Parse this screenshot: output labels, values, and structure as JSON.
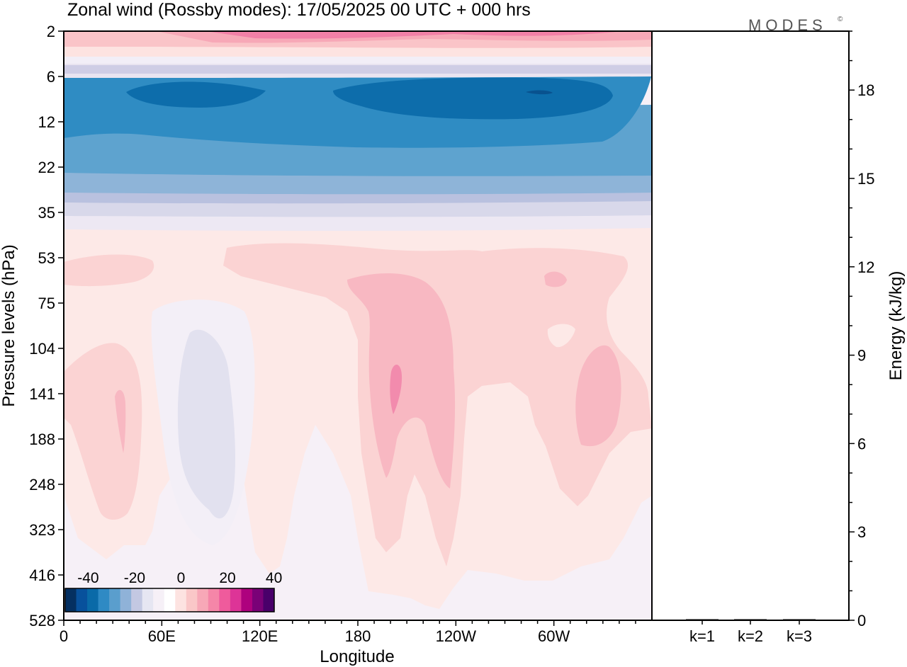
{
  "chart_data": [
    {
      "type": "heatmap",
      "title": "Zonal wind (Rossby modes):  17/05/2025  00 UTC  + 000 hrs",
      "xlabel": "Longitude",
      "ylabel": "Pressure levels (hPa)",
      "x_ticks": [
        "0",
        "60E",
        "120E",
        "180",
        "120W",
        "60W"
      ],
      "x_tick_lon": [
        0,
        60,
        120,
        180,
        240,
        300
      ],
      "xlim": [
        0,
        360
      ],
      "y_ticks": [
        "2",
        "6",
        "12",
        "22",
        "35",
        "53",
        "75",
        "104",
        "141",
        "188",
        "248",
        "323",
        "416",
        "528"
      ],
      "y_tick_values": [
        2,
        6,
        12,
        22,
        35,
        53,
        75,
        104,
        141,
        188,
        248,
        323,
        416,
        528
      ],
      "colorbar": {
        "tick_labels": [
          "-40",
          "-20",
          "0",
          "20",
          "40"
        ],
        "tick_values": [
          -40,
          -20,
          0,
          20,
          40
        ],
        "colors": [
          "#053061",
          "#08519c",
          "#0a6aa8",
          "#2f8ac4",
          "#5a9ecd",
          "#8fb2d8",
          "#c3c8e2",
          "#e6e6f2",
          "#f6f0f7",
          "#ffffff",
          "#fde3e1",
          "#fac7c8",
          "#f7a8b7",
          "#f586a8",
          "#ef5b9c",
          "#dd3497",
          "#ae017e",
          "#7a0177",
          "#49006a"
        ]
      },
      "field_summary": [
        {
          "region": "top levels 2-4 hPa",
          "wind": "weak westerly, up to ~15 m/s"
        },
        {
          "region": "6-22 hPa",
          "wind": "easterly, strongest ~-30 m/s near 8 hPa"
        },
        {
          "region": "53-323 hPa",
          "wind": "weak westerly maxima ~10-15 m/s near 190E, 290E, 30E"
        },
        {
          "region": "50E-100E, 75-320 hPa",
          "wind": "weak easterly ~-2 m/s"
        }
      ]
    },
    {
      "type": "bar",
      "categories": [
        "k=1",
        "k=2",
        "k=3"
      ],
      "values": [
        0.02,
        0.02,
        0.01
      ],
      "ylabel": "Energy (kJ/kg)",
      "y_ticks": [
        "0",
        "3",
        "6",
        "9",
        "12",
        "15",
        "18"
      ],
      "ylim": [
        0,
        20
      ]
    }
  ],
  "logo": {
    "text": "MODES",
    "mark": "©"
  }
}
